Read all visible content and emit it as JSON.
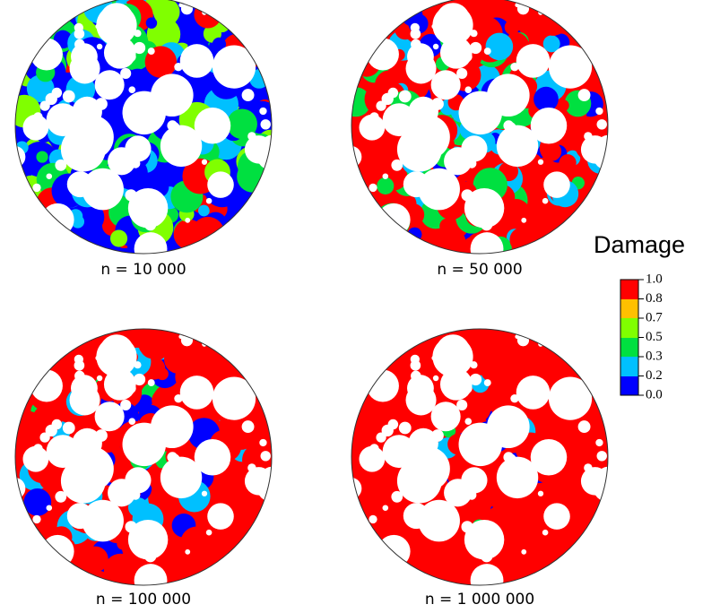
{
  "panels": [
    {
      "label": "n = 10 000"
    },
    {
      "label": "n = 50 000"
    },
    {
      "label": "n = 100 000"
    },
    {
      "label": "n = 1 000 000"
    }
  ],
  "colorbar": {
    "title": "Damage",
    "ticks": [
      "1.0",
      "0.8",
      "0.7",
      "0.5",
      "0.3",
      "0.2",
      "0.0"
    ]
  }
}
